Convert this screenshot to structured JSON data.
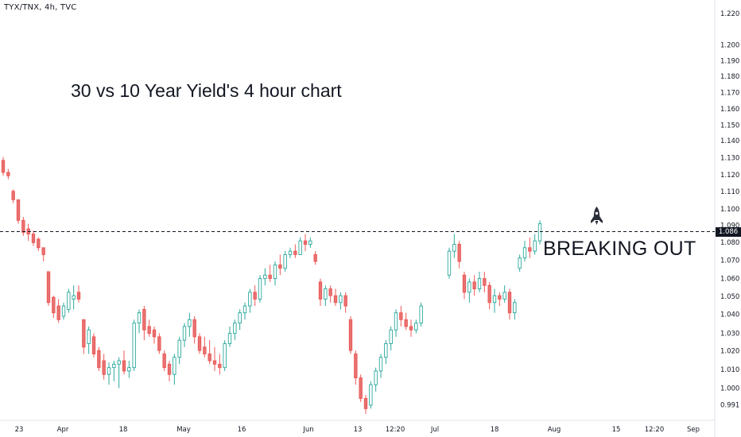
{
  "header": {
    "symbol": "TYX/TNX, 4h, TVC"
  },
  "annotations": {
    "title": "30 vs 10 Year Yield's 4 hour chart",
    "breakout_text": "BREAKING OUT",
    "rocket_icon": "rocket-icon"
  },
  "price_tag": {
    "value": "1.086"
  },
  "colors": {
    "up": "#26a69a",
    "down": "#ef5350",
    "down_fill": "#e57373",
    "axis_text": "#131722",
    "line": "#131722"
  },
  "chart_data": {
    "type": "candlestick",
    "title": "30 vs 10 Year Yield's 4 hour chart",
    "y_ticks": [
      "0.991",
      "1.000",
      "1.010",
      "1.020",
      "1.030",
      "1.040",
      "1.050",
      "1.060",
      "1.070",
      "1.080",
      "1.090",
      "1.100",
      "1.110",
      "1.120",
      "1.130",
      "1.140",
      "1.150",
      "1.160",
      "1.170",
      "1.180",
      "1.190",
      "1.200",
      "1.220"
    ],
    "x_ticks": [
      "23",
      "Apr",
      "18",
      "May",
      "16",
      "Jun",
      "13",
      "12:20",
      "Jul",
      "18",
      "Aug",
      "15",
      "12:20",
      "Sep"
    ],
    "ylim": [
      0.985,
      1.224
    ],
    "horizontal_line": 1.086,
    "candles": [
      [
        1.133,
        1.135,
        1.124,
        1.126
      ],
      [
        1.126,
        1.128,
        1.122,
        1.124
      ],
      [
        1.115,
        1.116,
        1.108,
        1.11
      ],
      [
        1.11,
        1.11,
        1.096,
        1.098
      ],
      [
        1.098,
        1.1,
        1.089,
        1.091
      ],
      [
        1.093,
        1.096,
        1.086,
        1.09
      ],
      [
        1.09,
        1.092,
        1.083,
        1.085
      ],
      [
        1.087,
        1.088,
        1.08,
        1.082
      ],
      [
        1.082,
        1.082,
        1.074,
        1.078
      ],
      [
        1.068,
        1.068,
        1.048,
        1.05
      ],
      [
        1.053,
        1.054,
        1.041,
        1.044
      ],
      [
        1.048,
        1.052,
        1.038,
        1.04
      ],
      [
        1.042,
        1.05,
        1.04,
        1.048
      ],
      [
        1.046,
        1.058,
        1.044,
        1.056
      ],
      [
        1.052,
        1.06,
        1.046,
        1.054
      ],
      [
        1.056,
        1.06,
        1.05,
        1.052
      ],
      [
        1.04,
        1.04,
        1.02,
        1.024
      ],
      [
        1.026,
        1.036,
        1.02,
        1.034
      ],
      [
        1.03,
        1.032,
        1.018,
        1.02
      ],
      [
        1.022,
        1.024,
        1.01,
        1.012
      ],
      [
        1.016,
        1.02,
        1.005,
        1.008
      ],
      [
        1.008,
        1.015,
        1.002,
        1.012
      ],
      [
        1.012,
        1.016,
        1.004,
        1.014
      ],
      [
        1.014,
        1.018,
        1.0,
        1.016
      ],
      [
        1.016,
        1.022,
        1.008,
        1.01
      ],
      [
        1.01,
        1.016,
        1.006,
        1.012
      ],
      [
        1.012,
        1.04,
        1.01,
        1.038
      ],
      [
        1.038,
        1.046,
        1.032,
        1.044
      ],
      [
        1.046,
        1.048,
        1.028,
        1.034
      ],
      [
        1.036,
        1.04,
        1.03,
        1.032
      ],
      [
        1.034,
        1.036,
        1.026,
        1.03
      ],
      [
        1.03,
        1.032,
        1.02,
        1.022
      ],
      [
        1.02,
        1.022,
        1.01,
        1.012
      ],
      [
        1.014,
        1.016,
        1.004,
        1.008
      ],
      [
        1.008,
        1.02,
        1.002,
        1.018
      ],
      [
        1.018,
        1.03,
        1.014,
        1.028
      ],
      [
        1.028,
        1.038,
        1.024,
        1.036
      ],
      [
        1.036,
        1.044,
        1.03,
        1.04
      ],
      [
        1.04,
        1.042,
        1.026,
        1.03
      ],
      [
        1.03,
        1.032,
        1.02,
        1.022
      ],
      [
        1.024,
        1.03,
        1.018,
        1.02
      ],
      [
        1.02,
        1.028,
        1.014,
        1.016
      ],
      [
        1.016,
        1.024,
        1.01,
        1.014
      ],
      [
        1.014,
        1.02,
        1.008,
        1.012
      ],
      [
        1.012,
        1.028,
        1.01,
        1.026
      ],
      [
        1.026,
        1.036,
        1.024,
        1.032
      ],
      [
        1.032,
        1.04,
        1.028,
        1.038
      ],
      [
        1.038,
        1.046,
        1.034,
        1.044
      ],
      [
        1.044,
        1.05,
        1.04,
        1.048
      ],
      [
        1.048,
        1.058,
        1.044,
        1.056
      ],
      [
        1.056,
        1.06,
        1.048,
        1.052
      ],
      [
        1.052,
        1.066,
        1.05,
        1.064
      ],
      [
        1.064,
        1.07,
        1.06,
        1.066
      ],
      [
        1.066,
        1.072,
        1.062,
        1.064
      ],
      [
        1.064,
        1.074,
        1.06,
        1.072
      ],
      [
        1.072,
        1.078,
        1.066,
        1.07
      ],
      [
        1.07,
        1.08,
        1.068,
        1.078
      ],
      [
        1.078,
        1.082,
        1.076,
        1.08
      ],
      [
        1.08,
        1.084,
        1.076,
        1.078
      ],
      [
        1.078,
        1.088,
        1.078,
        1.086
      ],
      [
        1.086,
        1.09,
        1.08,
        1.084
      ],
      [
        1.084,
        1.088,
        1.082,
        1.086
      ],
      [
        1.078,
        1.08,
        1.072,
        1.074
      ],
      [
        1.062,
        1.064,
        1.048,
        1.052
      ],
      [
        1.052,
        1.06,
        1.048,
        1.058
      ],
      [
        1.058,
        1.06,
        1.05,
        1.054
      ],
      [
        1.054,
        1.058,
        1.048,
        1.05
      ],
      [
        1.05,
        1.056,
        1.046,
        1.054
      ],
      [
        1.054,
        1.056,
        1.044,
        1.048
      ],
      [
        1.04,
        1.042,
        1.02,
        1.022
      ],
      [
        1.02,
        1.022,
        1.002,
        1.006
      ],
      [
        1.006,
        1.008,
        0.992,
        0.994
      ],
      [
        0.994,
        0.996,
        0.985,
        0.988
      ],
      [
        0.99,
        1.004,
        0.988,
        1.002
      ],
      [
        1.002,
        1.012,
        0.998,
        1.01
      ],
      [
        1.01,
        1.02,
        1.006,
        1.018
      ],
      [
        1.018,
        1.028,
        1.014,
        1.026
      ],
      [
        1.026,
        1.036,
        1.022,
        1.034
      ],
      [
        1.034,
        1.046,
        1.03,
        1.044
      ],
      [
        1.044,
        1.048,
        1.036,
        1.04
      ],
      [
        1.04,
        1.044,
        1.034,
        1.036
      ],
      [
        1.036,
        1.04,
        1.03,
        1.034
      ],
      [
        1.034,
        1.04,
        1.032,
        1.038
      ],
      [
        1.038,
        1.05,
        1.036,
        1.048
      ],
      [
        1.066,
        1.082,
        1.064,
        1.08
      ],
      [
        1.08,
        1.09,
        1.076,
        1.084
      ],
      [
        1.084,
        1.086,
        1.07,
        1.074
      ],
      [
        1.066,
        1.068,
        1.052,
        1.056
      ],
      [
        1.056,
        1.064,
        1.05,
        1.062
      ],
      [
        1.062,
        1.066,
        1.054,
        1.058
      ],
      [
        1.058,
        1.068,
        1.056,
        1.064
      ],
      [
        1.064,
        1.068,
        1.056,
        1.06
      ],
      [
        1.06,
        1.062,
        1.046,
        1.05
      ],
      [
        1.05,
        1.058,
        1.044,
        1.054
      ],
      [
        1.054,
        1.056,
        1.048,
        1.052
      ],
      [
        1.052,
        1.06,
        1.05,
        1.056
      ],
      [
        1.056,
        1.058,
        1.04,
        1.044
      ],
      [
        1.044,
        1.052,
        1.04,
        1.05
      ],
      [
        1.07,
        1.078,
        1.068,
        1.076
      ],
      [
        1.076,
        1.086,
        1.074,
        1.082
      ],
      [
        1.082,
        1.088,
        1.076,
        1.08
      ],
      [
        1.08,
        1.09,
        1.078,
        1.086
      ],
      [
        1.086,
        1.098,
        1.084,
        1.096
      ]
    ]
  }
}
